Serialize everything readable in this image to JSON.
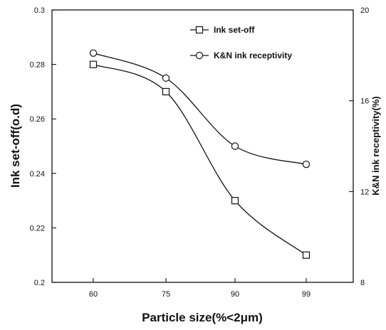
{
  "chart_data": {
    "type": "line",
    "title": "",
    "xlabel": "Particle size(%<2μm)",
    "ylabel_left": "Ink set-off(o.d)",
    "ylabel_right": "K&N ink receptivity(%)",
    "categories": [
      "60",
      "75",
      "90",
      "99"
    ],
    "ylim_left": [
      0.2,
      0.3
    ],
    "ylim_right": [
      8,
      20
    ],
    "yticks_left": [
      "0.2",
      "0.22",
      "0.24",
      "0.26",
      "0.28",
      "0.3"
    ],
    "yticks_right": [
      "8",
      "12",
      "16",
      "20"
    ],
    "grid": false,
    "legend_position": "top-right",
    "series": [
      {
        "name": "Ink set-off",
        "axis": "left",
        "marker": "square",
        "values": [
          0.28,
          0.27,
          0.23,
          0.21
        ]
      },
      {
        "name": "K&N ink receptivity",
        "axis": "right",
        "marker": "circle",
        "values": [
          18.1,
          17.0,
          14.0,
          13.2
        ]
      }
    ],
    "colors": {
      "line": "#111111",
      "marker_fill": "#ffffff"
    }
  }
}
